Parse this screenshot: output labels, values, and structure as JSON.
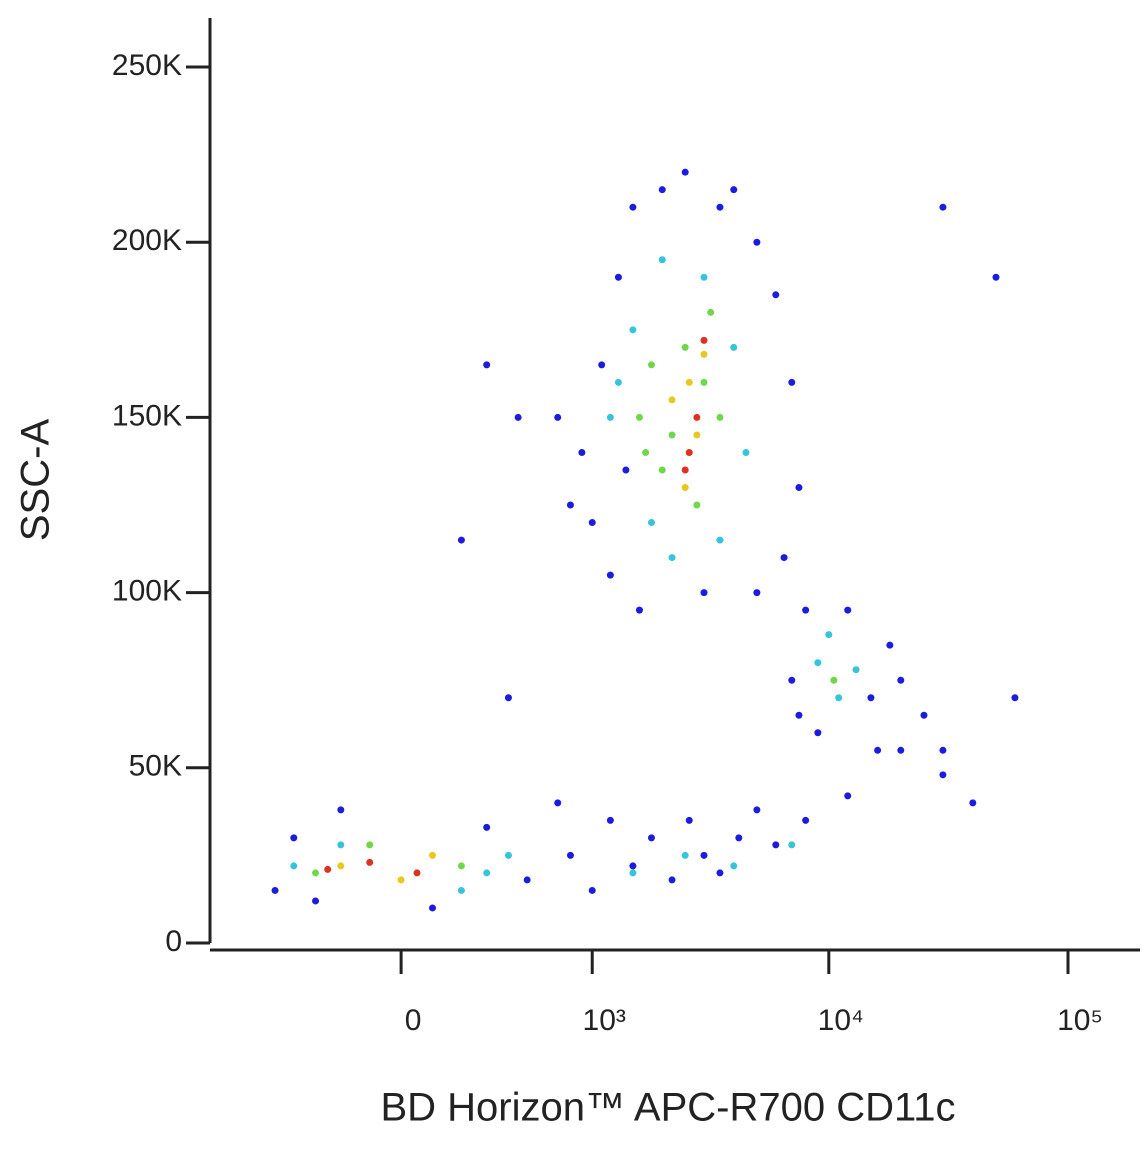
{
  "chart_data": {
    "type": "scatter",
    "x_label": "BD Horizon™ APC-R700 CD11c",
    "y_label": "SSC-A",
    "xscale": "biexponential",
    "xlim": [
      -1000,
      200000
    ],
    "ylim": [
      0,
      264000
    ],
    "xticks": [
      0,
      {
        "value": 1000,
        "label": "10³"
      },
      {
        "value": 10000,
        "label": "10⁴"
      },
      {
        "value": 100000,
        "label": "10⁵"
      }
    ],
    "yticks": [
      0,
      {
        "value": 50000,
        "label": "50K"
      },
      {
        "value": 100000,
        "label": "100K"
      },
      {
        "value": 150000,
        "label": "150K"
      },
      {
        "value": 200000,
        "label": "200K"
      },
      {
        "value": 250000,
        "label": "250K"
      }
    ],
    "series": [
      {
        "color": "#1c1ce0",
        "x": [
          -500,
          -400,
          -300,
          -200,
          100,
          300,
          500,
          700,
          800,
          1000,
          1200,
          1500,
          1800,
          2200,
          2600,
          3000,
          3500,
          4200,
          5000,
          6000,
          8000,
          12000,
          20000,
          30000,
          40000,
          900,
          1000,
          1100,
          1300,
          1200,
          1500,
          1600,
          2000,
          2500,
          3000,
          3500,
          4000,
          5000,
          6000,
          7000,
          7500,
          6500,
          5000,
          800,
          700,
          1400,
          7000,
          8000,
          9000,
          12000,
          15000,
          18000,
          16000,
          7500,
          20000,
          25000,
          30000,
          300,
          450,
          200,
          50000,
          30000,
          400,
          60000
        ],
        "values": [
          15000,
          30000,
          12000,
          38000,
          10000,
          33000,
          18000,
          40000,
          25000,
          15000,
          35000,
          22000,
          30000,
          18000,
          35000,
          25000,
          20000,
          30000,
          38000,
          28000,
          35000,
          42000,
          55000,
          48000,
          40000,
          140000,
          120000,
          165000,
          190000,
          105000,
          210000,
          95000,
          215000,
          220000,
          100000,
          210000,
          215000,
          200000,
          185000,
          160000,
          130000,
          110000,
          100000,
          125000,
          150000,
          135000,
          75000,
          95000,
          60000,
          95000,
          70000,
          85000,
          55000,
          65000,
          75000,
          65000,
          55000,
          165000,
          150000,
          115000,
          190000,
          210000,
          70000,
          70000
        ]
      },
      {
        "color": "#35c4dc",
        "x": [
          -400,
          -200,
          200,
          400,
          300,
          1500,
          2500,
          4000,
          7000,
          1200,
          1500,
          1800,
          2000,
          3000,
          4000,
          4500,
          3500,
          2200,
          1300,
          9000,
          11000,
          10000,
          13000
        ],
        "values": [
          22000,
          28000,
          15000,
          25000,
          20000,
          20000,
          25000,
          22000,
          28000,
          150000,
          175000,
          120000,
          195000,
          190000,
          170000,
          140000,
          115000,
          110000,
          160000,
          80000,
          70000,
          88000,
          78000
        ]
      },
      {
        "color": "#6ed84a",
        "x": [
          -300,
          -100,
          200,
          1600,
          1800,
          2000,
          2500,
          3000,
          3500,
          2800,
          2200,
          3200,
          1700,
          10500
        ],
        "values": [
          20000,
          28000,
          22000,
          150000,
          165000,
          135000,
          170000,
          160000,
          150000,
          125000,
          145000,
          180000,
          140000,
          75000
        ]
      },
      {
        "color": "#e8c81e",
        "x": [
          -200,
          0,
          100,
          2200,
          2800,
          3000,
          2500,
          2600
        ],
        "values": [
          22000,
          18000,
          25000,
          155000,
          145000,
          168000,
          130000,
          160000
        ]
      },
      {
        "color": "#e0301e",
        "x": [
          -250,
          -100,
          50,
          2600,
          2800,
          3000,
          2500
        ],
        "values": [
          21000,
          23000,
          20000,
          140000,
          150000,
          172000,
          135000
        ]
      }
    ]
  }
}
